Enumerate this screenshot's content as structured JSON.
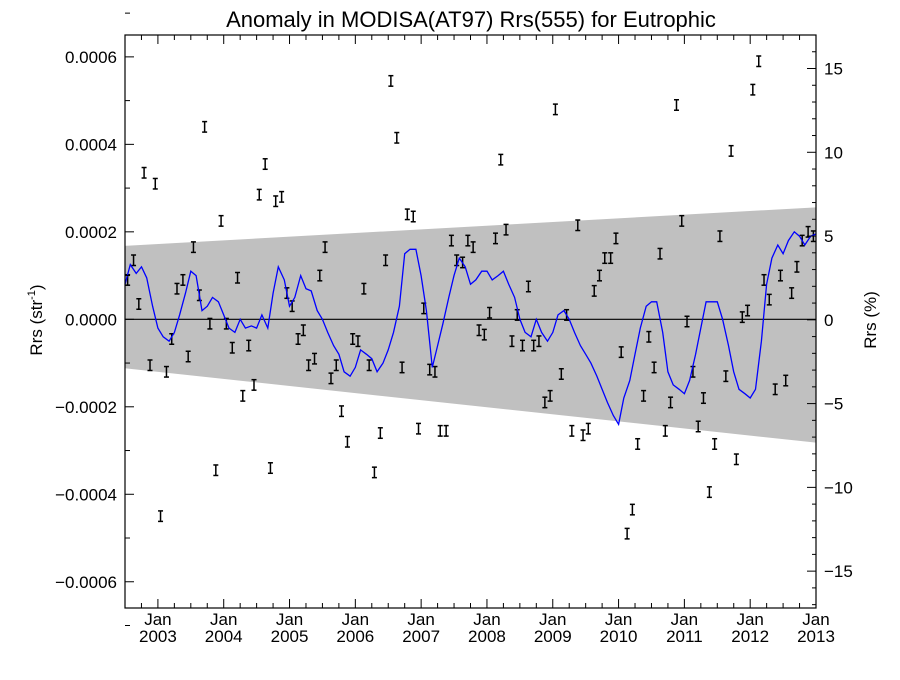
{
  "chart_data": {
    "type": "scatter",
    "title": "Anomaly in MODISA(AT97) Rrs(555) for Eutrophic",
    "ylabel_base": "Rrs (str",
    "ylabel_sup": "-1",
    "ylabel_close": ")",
    "y2label": "Rrs (%)",
    "xlim": [
      2002.5,
      2013.0
    ],
    "ylim": [
      -0.00066,
      0.00065
    ],
    "y2lim": [
      -17.2,
      17.0
    ],
    "yticks": [
      -0.0006,
      -0.0004,
      -0.0002,
      0.0,
      0.0002,
      0.0004,
      0.0006
    ],
    "ytick_labels": [
      "−0.0006",
      "−0.0004",
      "−0.0002",
      "0.0000",
      "0.0002",
      "0.0004",
      "0.0006"
    ],
    "y2ticks": [
      -15,
      -10,
      -5,
      0,
      5,
      10,
      15
    ],
    "y2tick_labels": [
      "−15",
      "−10",
      "−5",
      "0",
      "5",
      "10",
      "15"
    ],
    "xticks": [
      2003,
      2004,
      2005,
      2006,
      2007,
      2008,
      2009,
      2010,
      2011,
      2012,
      2013
    ],
    "xtick_month": "Jan",
    "xtick_years": [
      "2003",
      "2004",
      "2005",
      "2006",
      "2007",
      "2008",
      "2009",
      "2010",
      "2011",
      "2012",
      "2013"
    ],
    "band": {
      "x": [
        2002.5,
        2013.0
      ],
      "upper": [
        0.000168,
        0.000256
      ],
      "lower": [
        -0.000112,
        -0.000282
      ]
    },
    "colors": {
      "band": "#c0c0c0",
      "line": "#0000ff",
      "points": "#000000",
      "axes": "#000000"
    },
    "series": [
      {
        "kind": "errorbars",
        "err": 1.2e-05,
        "x": [
          2002.54,
          2002.63,
          2002.71,
          2002.79,
          2002.88,
          2002.96,
          2003.04,
          2003.13,
          2003.21,
          2003.29,
          2003.38,
          2003.46,
          2003.54,
          2003.63,
          2003.71,
          2003.79,
          2003.88,
          2003.96,
          2004.04,
          2004.13,
          2004.21,
          2004.29,
          2004.38,
          2004.46,
          2004.54,
          2004.63,
          2004.71,
          2004.79,
          2004.88,
          2004.96,
          2005.04,
          2005.13,
          2005.21,
          2005.29,
          2005.38,
          2005.46,
          2005.54,
          2005.63,
          2005.71,
          2005.79,
          2005.88,
          2005.96,
          2006.04,
          2006.13,
          2006.21,
          2006.29,
          2006.38,
          2006.46,
          2006.54,
          2006.63,
          2006.71,
          2006.79,
          2006.88,
          2006.96,
          2007.04,
          2007.13,
          2007.21,
          2007.29,
          2007.38,
          2007.46,
          2007.54,
          2007.63,
          2007.71,
          2007.79,
          2007.88,
          2007.96,
          2008.04,
          2008.13,
          2008.21,
          2008.29,
          2008.38,
          2008.46,
          2008.54,
          2008.63,
          2008.71,
          2008.79,
          2008.88,
          2008.96,
          2009.04,
          2009.13,
          2009.21,
          2009.29,
          2009.38,
          2009.46,
          2009.54,
          2009.63,
          2009.71,
          2009.79,
          2009.88,
          2009.96,
          2010.04,
          2010.13,
          2010.21,
          2010.29,
          2010.38,
          2010.46,
          2010.54,
          2010.63,
          2010.71,
          2010.79,
          2010.88,
          2010.96,
          2011.04,
          2011.13,
          2011.21,
          2011.29,
          2011.38,
          2011.46,
          2011.54,
          2011.63,
          2011.71,
          2011.79,
          2011.88,
          2011.96,
          2012.04,
          2012.13,
          2012.21,
          2012.29,
          2012.38,
          2012.46,
          2012.54,
          2012.63,
          2012.71,
          2012.79,
          2012.88,
          2012.96
        ],
        "y": [
          9e-05,
          0.000135,
          3.5e-05,
          0.000335,
          -0.000105,
          0.00031,
          -0.00045,
          -0.00012,
          -4.5e-05,
          7e-05,
          9e-05,
          -8.5e-05,
          0.000165,
          5.5e-05,
          0.00044,
          -1e-05,
          -0.000345,
          0.000225,
          -1e-05,
          -6.5e-05,
          9.5e-05,
          -0.000175,
          -6e-05,
          -0.00015,
          0.000285,
          0.000355,
          -0.00034,
          0.00027,
          0.00028,
          6e-05,
          3e-05,
          -4.5e-05,
          -2.5e-05,
          -0.000105,
          -9e-05,
          0.0001,
          0.000165,
          -0.000135,
          -0.000105,
          -0.00021,
          -0.00028,
          -4.5e-05,
          -5e-05,
          7e-05,
          -0.000105,
          -0.00035,
          -0.00026,
          0.000135,
          0.000545,
          0.000415,
          -0.00011,
          0.00024,
          0.000235,
          -0.00025,
          2.5e-05,
          -0.000115,
          -0.00012,
          -0.000255,
          -0.000255,
          0.00018,
          0.000135,
          0.00013,
          0.00018,
          0.000165,
          -2.5e-05,
          -3.5e-05,
          1.5e-05,
          0.000185,
          0.000365,
          0.000205,
          -5e-05,
          1e-05,
          -6e-05,
          7.5e-05,
          -6e-05,
          -5e-05,
          -0.00019,
          -0.000175,
          0.00048,
          -0.000125,
          1e-05,
          -0.000255,
          0.000215,
          -0.000265,
          -0.00025,
          6.5e-05,
          0.0001,
          0.00014,
          0.00014,
          0.000185,
          -7.5e-05,
          -0.00049,
          -0.000435,
          -0.000285,
          -0.000175,
          -4e-05,
          -0.00011,
          0.00015,
          -0.000255,
          -0.00019,
          0.00049,
          0.000225,
          -5e-06,
          -0.00012,
          -0.000245,
          -0.00018,
          -0.000395,
          -0.000285,
          0.00019,
          -0.00013,
          0.000385,
          -0.00032,
          5e-06,
          2e-05,
          0.000525,
          0.00059,
          9e-05,
          4.5e-05,
          -0.00016,
          0.0001,
          -0.00014,
          6e-05,
          0.00012,
          0.00018,
          0.0002,
          0.00019
        ]
      },
      {
        "kind": "line",
        "x": [
          2002.5,
          2002.58,
          2002.67,
          2002.75,
          2002.83,
          2002.92,
          2003.0,
          2003.08,
          2003.17,
          2003.25,
          2003.33,
          2003.42,
          2003.5,
          2003.58,
          2003.67,
          2003.75,
          2003.83,
          2003.92,
          2004.0,
          2004.08,
          2004.17,
          2004.25,
          2004.33,
          2004.42,
          2004.5,
          2004.58,
          2004.67,
          2004.75,
          2004.83,
          2004.92,
          2005.0,
          2005.08,
          2005.17,
          2005.25,
          2005.33,
          2005.42,
          2005.5,
          2005.58,
          2005.67,
          2005.75,
          2005.83,
          2005.92,
          2006.0,
          2006.08,
          2006.17,
          2006.25,
          2006.33,
          2006.42,
          2006.5,
          2006.58,
          2006.67,
          2006.75,
          2006.83,
          2006.92,
          2007.0,
          2007.08,
          2007.17,
          2007.25,
          2007.33,
          2007.42,
          2007.5,
          2007.58,
          2007.67,
          2007.75,
          2007.83,
          2007.92,
          2008.0,
          2008.08,
          2008.17,
          2008.25,
          2008.33,
          2008.42,
          2008.5,
          2008.58,
          2008.67,
          2008.75,
          2008.83,
          2008.92,
          2009.0,
          2009.08,
          2009.17,
          2009.25,
          2009.33,
          2009.42,
          2009.5,
          2009.58,
          2009.67,
          2009.75,
          2009.83,
          2009.92,
          2010.0,
          2010.08,
          2010.17,
          2010.25,
          2010.33,
          2010.42,
          2010.5,
          2010.58,
          2010.67,
          2010.75,
          2010.83,
          2010.92,
          2011.0,
          2011.08,
          2011.17,
          2011.25,
          2011.33,
          2011.42,
          2011.5,
          2011.58,
          2011.67,
          2011.75,
          2011.83,
          2011.92,
          2012.0,
          2012.08,
          2012.17,
          2012.25,
          2012.33,
          2012.42,
          2012.5,
          2012.58,
          2012.67,
          2012.75,
          2012.83,
          2012.92,
          2013.0
        ],
        "y": [
          8e-05,
          0.000125,
          0.000105,
          0.00012,
          9.5e-05,
          3e-05,
          -2e-05,
          -4e-05,
          -5e-05,
          -3e-05,
          1e-05,
          6e-05,
          0.00011,
          0.0001,
          2e-05,
          3e-05,
          5e-05,
          4e-05,
          1e-05,
          -2e-05,
          -3e-05,
          0.0,
          -2e-05,
          -1.5e-05,
          -2e-05,
          1e-05,
          -2e-05,
          6e-05,
          0.00012,
          9e-05,
          3e-05,
          5e-05,
          0.0001,
          7e-05,
          6.5e-05,
          2e-05,
          0.0,
          -3e-05,
          -6e-05,
          -8e-05,
          -0.00012,
          -0.00013,
          -0.00011,
          -7e-05,
          -8e-05,
          -9e-05,
          -0.00012,
          -0.0001,
          -7e-05,
          -3e-05,
          3e-05,
          0.00015,
          0.00016,
          0.00016,
          0.0001,
          2e-05,
          -0.00011,
          -6e-05,
          -1e-05,
          5e-05,
          0.0001,
          0.00014,
          0.00012,
          8e-05,
          9e-05,
          0.00011,
          0.00011,
          9e-05,
          0.0001,
          0.00011,
          8e-05,
          5e-05,
          0.0,
          -3e-05,
          -4e-05,
          0.0,
          -3e-05,
          -5e-05,
          -3e-05,
          1e-05,
          2e-05,
          0.0,
          -3e-05,
          -6e-05,
          -8e-05,
          -0.0001,
          -0.00013,
          -0.00016,
          -0.00019,
          -0.00022,
          -0.00024,
          -0.00018,
          -0.00014,
          -8e-05,
          -2e-05,
          3e-05,
          4e-05,
          4e-05,
          -3e-05,
          -0.00012,
          -0.00015,
          -0.00016,
          -0.00017,
          -0.00014,
          -8e-05,
          -2e-05,
          4e-05,
          4e-05,
          4e-05,
          0.0,
          -6e-05,
          -0.00012,
          -0.00016,
          -0.00017,
          -0.00018,
          -0.00016,
          -5e-05,
          8e-05,
          0.00014,
          0.00017,
          0.00015,
          0.00018,
          0.0002,
          0.00019,
          0.00017,
          0.00019,
          0.000195
        ]
      }
    ]
  }
}
